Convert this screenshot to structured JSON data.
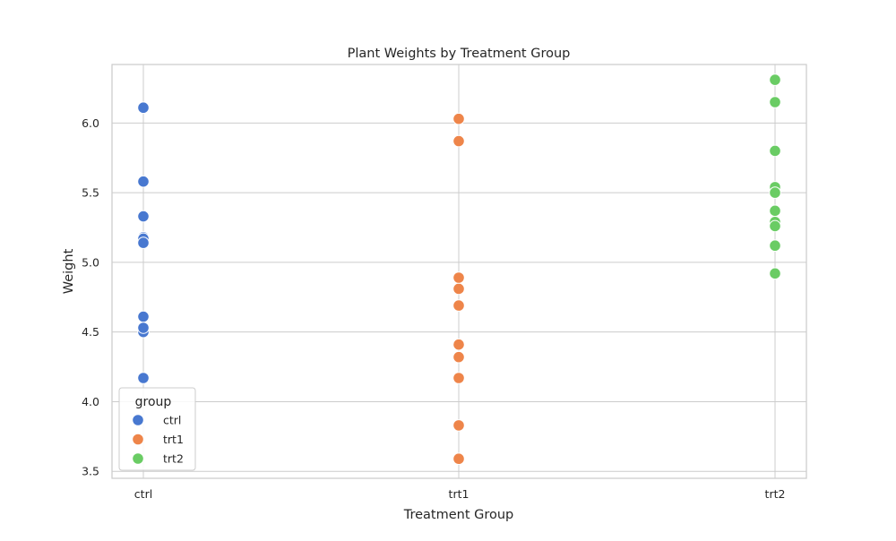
{
  "chart_data": {
    "type": "scatter",
    "title": "Plant Weights by Treatment Group",
    "xlabel": "Treatment Group",
    "ylabel": "Weight",
    "categories": [
      "ctrl",
      "trt1",
      "trt2"
    ],
    "ylim": [
      3.45,
      6.42
    ],
    "yticks": [
      3.5,
      4.0,
      4.5,
      5.0,
      5.5,
      6.0
    ],
    "ytick_labels": [
      "3.5",
      "4.0",
      "4.5",
      "5.0",
      "5.5",
      "6.0"
    ],
    "grid": true,
    "legend": {
      "title": "group",
      "position": "lower-left"
    },
    "series": [
      {
        "name": "ctrl",
        "color": "#4878d0",
        "category": "ctrl",
        "values": [
          4.17,
          5.58,
          5.18,
          6.11,
          4.5,
          4.61,
          5.17,
          4.53,
          5.33,
          5.14
        ]
      },
      {
        "name": "trt1",
        "color": "#ee854a",
        "category": "trt1",
        "values": [
          4.81,
          4.17,
          4.41,
          3.59,
          5.87,
          3.83,
          6.03,
          4.89,
          4.32,
          4.69
        ]
      },
      {
        "name": "trt2",
        "color": "#6acc64",
        "category": "trt2",
        "values": [
          6.31,
          5.12,
          5.54,
          5.5,
          5.37,
          5.29,
          4.92,
          6.15,
          5.8,
          5.26
        ]
      }
    ]
  }
}
